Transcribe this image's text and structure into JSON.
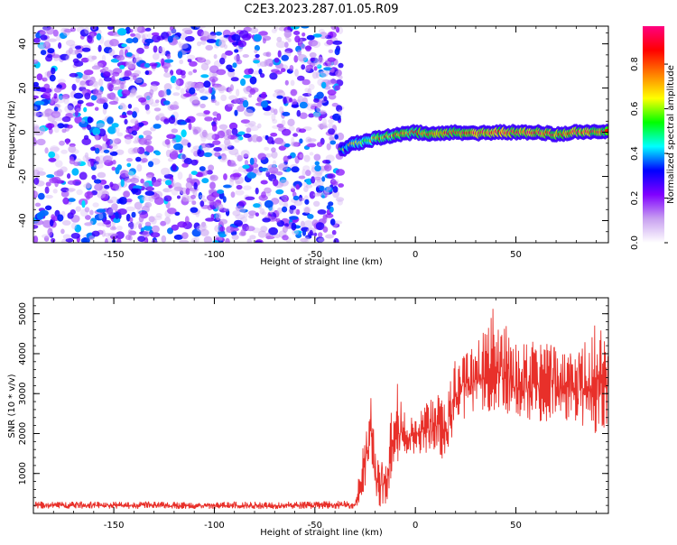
{
  "title": "C2E3.2023.287.01.05.R09",
  "chart_data": [
    {
      "type": "heatmap",
      "xlabel": "Height of straight line (km)",
      "ylabel": "Frequency (Hz)",
      "xlim": [
        -190,
        96
      ],
      "ylim": [
        -50,
        48
      ],
      "xticks": [
        -150,
        -100,
        -50,
        0,
        50
      ],
      "yticks": [
        -40,
        -20,
        0,
        20,
        40
      ],
      "colorbar": {
        "label": "Normalized spectral amplitude",
        "range": [
          0,
          0.97
        ],
        "ticks": [
          "0.0",
          "0.2",
          "0.4",
          "0.6",
          "0.8"
        ],
        "colors": [
          "#ffffff",
          "#c8a0f0",
          "#8000ff",
          "#0000ff",
          "#00ffff",
          "#00ff00",
          "#ffff00",
          "#ff8000",
          "#ff0000",
          "#ff0080"
        ]
      },
      "noise_region": {
        "x_range": [
          -190,
          -37
        ],
        "y_range": [
          -50,
          48
        ],
        "typical_amplitude": 0.05
      },
      "signal_ridge": {
        "x": [
          -37,
          -30,
          -25,
          -20,
          -15,
          -10,
          0,
          10,
          20,
          30,
          40,
          50,
          60,
          70,
          80,
          96
        ],
        "frequency": [
          -8,
          -5,
          -4,
          -3,
          -2,
          -1.5,
          0,
          -1,
          0,
          -0.5,
          0,
          0,
          0,
          -1,
          0,
          0
        ],
        "amplitude": [
          0.45,
          0.6,
          0.6,
          0.65,
          0.7,
          0.75,
          0.75,
          0.8,
          0.8,
          0.85,
          0.85,
          0.85,
          0.85,
          0.8,
          0.85,
          0.8
        ]
      }
    },
    {
      "type": "line",
      "xlabel": "Height of straight line (km)",
      "ylabel": "SNR (10 * v/v)",
      "xlim": [
        -190,
        96
      ],
      "ylim": [
        0,
        5400
      ],
      "xticks": [
        -150,
        -100,
        -50,
        0,
        50
      ],
      "yticks": [
        1000,
        2000,
        3000,
        4000,
        5000
      ],
      "series": [
        {
          "color": "#e8302a",
          "envelope_x": [
            -190,
            -120,
            -60,
            -30,
            -27,
            -24,
            -22,
            -20,
            -18,
            -15,
            -12,
            -10,
            -5,
            0,
            10,
            15,
            20,
            30,
            40,
            50,
            60,
            70,
            80,
            90,
            96
          ],
          "envelope_low": [
            120,
            110,
            110,
            120,
            250,
            600,
            1300,
            500,
            50,
            100,
            800,
            1200,
            1400,
            1500,
            1500,
            1300,
            2200,
            2600,
            2400,
            2400,
            2300,
            2300,
            2200,
            2000,
            2200
          ],
          "envelope_high": [
            300,
            290,
            300,
            320,
            1300,
            2500,
            3100,
            1700,
            1200,
            1400,
            2600,
            3500,
            2600,
            2400,
            3100,
            2700,
            4000,
            4200,
            5300,
            4400,
            4300,
            4200,
            4000,
            4800,
            4300
          ]
        }
      ]
    }
  ]
}
